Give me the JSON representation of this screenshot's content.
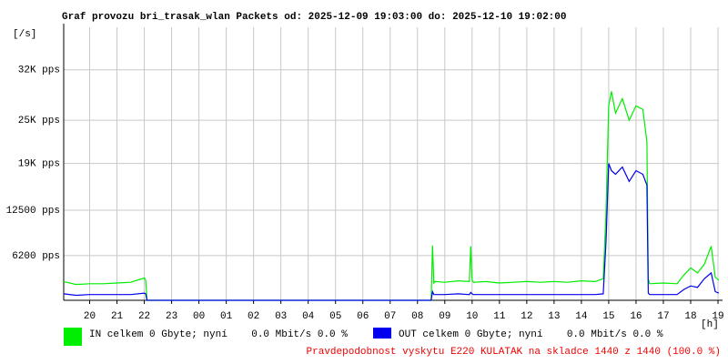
{
  "chart_data": {
    "type": "line",
    "title": "Graf provozu bri_trasak_wlan Packets od: 2025-12-09 19:03:00 do: 2025-12-10 19:02:00",
    "y_label": "[/s]",
    "x_label": "[h]",
    "x": [
      19.05,
      19.5,
      20,
      20.5,
      21,
      21.5,
      22,
      22.05,
      22.1,
      23,
      24,
      25,
      26,
      27,
      28,
      29,
      30,
      31,
      32,
      32.5,
      32.55,
      32.6,
      32.65,
      33,
      33.5,
      33.9,
      33.95,
      34,
      34.05,
      34.5,
      35,
      35.5,
      36,
      36.5,
      37,
      37.5,
      38,
      38.5,
      38.8,
      38.9,
      39,
      39.1,
      39.25,
      39.5,
      39.75,
      40,
      40.25,
      40.4,
      40.45,
      40.5,
      41,
      41.5,
      41.75,
      42,
      42.25,
      42.5,
      42.75,
      42.9,
      43.03
    ],
    "series": [
      {
        "name": "IN celkem 0 Gbyte; nyní    0.0 Mbit/s 0.0 %",
        "color": "#00ee00",
        "values": [
          2600,
          2200,
          2300,
          2300,
          2400,
          2500,
          3100,
          2800,
          0,
          0,
          0,
          0,
          0,
          0,
          0,
          0,
          0,
          0,
          0,
          0,
          7600,
          2400,
          2600,
          2500,
          2700,
          2600,
          7500,
          2800,
          2500,
          2600,
          2400,
          2500,
          2600,
          2500,
          2600,
          2500,
          2700,
          2600,
          3000,
          12000,
          27000,
          29000,
          26000,
          28000,
          25000,
          27000,
          26500,
          22000,
          3000,
          2300,
          2400,
          2300,
          3500,
          4500,
          3800,
          5000,
          7500,
          3200,
          2800
        ]
      },
      {
        "name": "OUT celkem 0 Gbyte; nyní    0.0 Mbit/s 0.0 %",
        "color": "#0000ee",
        "values": [
          900,
          700,
          800,
          800,
          800,
          800,
          1000,
          900,
          0,
          0,
          0,
          0,
          0,
          0,
          0,
          0,
          0,
          0,
          0,
          0,
          1200,
          800,
          800,
          800,
          900,
          800,
          1100,
          900,
          800,
          800,
          800,
          800,
          800,
          800,
          800,
          800,
          800,
          800,
          900,
          8000,
          19000,
          18000,
          17500,
          18500,
          16500,
          18000,
          17500,
          16000,
          1000,
          800,
          800,
          800,
          1500,
          2000,
          1800,
          3000,
          3800,
          1200,
          1000
        ]
      }
    ],
    "xlim": [
      19.05,
      43.0333
    ],
    "xticks": [
      20,
      21,
      22,
      23,
      {
        "value": 24,
        "label": "00"
      },
      {
        "value": 25,
        "label": "01"
      },
      {
        "value": 26,
        "label": "02"
      },
      {
        "value": 27,
        "label": "03"
      },
      {
        "value": 28,
        "label": "04"
      },
      {
        "value": 29,
        "label": "05"
      },
      {
        "value": 30,
        "label": "06"
      },
      {
        "value": 31,
        "label": "07"
      },
      {
        "value": 32,
        "label": "08"
      },
      {
        "value": 33,
        "label": "09"
      },
      {
        "value": 34,
        "label": "10"
      },
      {
        "value": 35,
        "label": "11"
      },
      {
        "value": 36,
        "label": "12"
      },
      {
        "value": 37,
        "label": "13"
      },
      {
        "value": 38,
        "label": "14"
      },
      {
        "value": 39,
        "label": "15"
      },
      {
        "value": 40,
        "label": "16"
      },
      {
        "value": 41,
        "label": "17"
      },
      {
        "value": 42,
        "label": "18"
      },
      {
        "value": 43,
        "label": "19"
      }
    ],
    "ylim": [
      0,
      37900
    ],
    "yticks": [
      {
        "value": 6200,
        "label": "6200 pps"
      },
      {
        "value": 12500,
        "label": "12500 pps"
      },
      {
        "value": 19000,
        "label": "19K pps"
      },
      {
        "value": 25000,
        "label": "25K pps"
      },
      {
        "value": 32000,
        "label": "32K pps"
      }
    ],
    "grid": true,
    "annotation": "Pravdepodobnost vyskytu E220 KULATAK na skladce 1440 z 1440 (100.0 %)",
    "annotation_color": "#ee0000"
  }
}
